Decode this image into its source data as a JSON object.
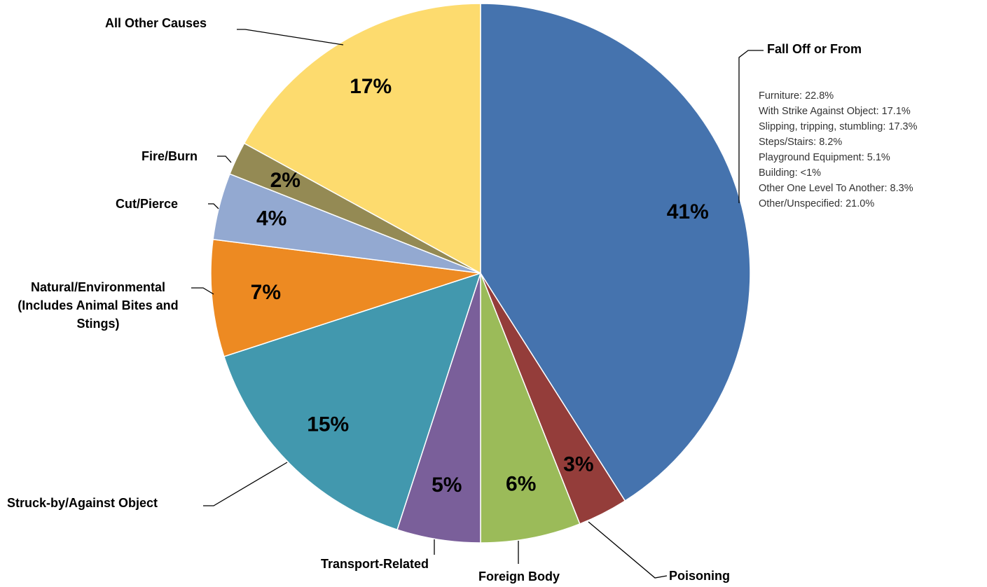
{
  "chart_data": {
    "type": "pie",
    "categories": [
      "Fall Off or From",
      "Poisoning",
      "Foreign Body",
      "Transport-Related",
      "Struck-by/Against Object",
      "Natural/Environmental (Includes Animal Bites and Stings)",
      "Cut/Pierce",
      "Fire/Burn",
      "All Other Causes"
    ],
    "values": [
      41,
      3,
      6,
      5,
      15,
      7,
      4,
      2,
      17
    ],
    "value_labels": [
      "41%",
      "3%",
      "6%",
      "5%",
      "15%",
      "7%",
      "4%",
      "2%",
      "17%"
    ],
    "colors": [
      "#4573ae",
      "#943d3a",
      "#9bbb59",
      "#7a5f9a",
      "#4298ae",
      "#ed8a22",
      "#93a9d1",
      "#948a54",
      "#fddb6e"
    ],
    "annotations": [
      "Furniture: 22.8%",
      "With Strike Against Object: 17.1%",
      "Slipping, tripping, stumbling: 17.3%",
      "Steps/Stairs: 8.2%",
      "Playground Equipment: 5.1%",
      "Building: <1%",
      "Other One Level To Another: 8.3%",
      "Other/Unspecified: 21.0%"
    ]
  }
}
